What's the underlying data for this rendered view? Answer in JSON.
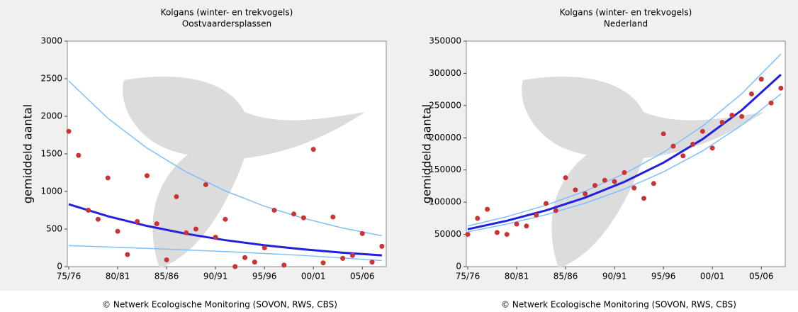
{
  "chart_data": [
    {
      "type": "scatter",
      "title": "Kolgans (winter- en trekvogels)",
      "subtitle": "Oostvaardersplassen",
      "y_label": "gemiddeld aantal",
      "source": "© Netwerk Ecologische Monitoring (SOVON, RWS, CBS)",
      "xlim": [
        1975,
        2007.3
      ],
      "ylim": [
        0,
        3000
      ],
      "yticks": [
        0,
        500,
        1000,
        1500,
        2000,
        2500,
        3000
      ],
      "xticks": [
        {
          "value": 1975,
          "label": "75/76"
        },
        {
          "value": 1980,
          "label": "80/81"
        },
        {
          "value": 1985,
          "label": "85/86"
        },
        {
          "value": 1990,
          "label": "90/91"
        },
        {
          "value": 1995,
          "label": "95/96"
        },
        {
          "value": 2000,
          "label": "00/01"
        },
        {
          "value": 2005,
          "label": "05/06"
        }
      ],
      "points": {
        "color": "#cc3333",
        "x": [
          1975,
          1976,
          1977,
          1978,
          1979,
          1980,
          1981,
          1982,
          1983,
          1984,
          1985,
          1986,
          1987,
          1988,
          1989,
          1990,
          1991,
          1992,
          1993,
          1994,
          1995,
          1996,
          1997,
          1998,
          1999,
          2000,
          2001,
          2002,
          2003,
          2004,
          2005,
          2006,
          2007
        ],
        "values": [
          1800,
          1480,
          750,
          630,
          1180,
          470,
          160,
          600,
          1210,
          570,
          90,
          930,
          450,
          500,
          1090,
          390,
          630,
          0,
          120,
          60,
          250,
          750,
          20,
          700,
          650,
          1560,
          50,
          660,
          110,
          150,
          440,
          60,
          270
        ]
      },
      "trends": [
        {
          "color": "#2020e0",
          "x": [
            1975,
            1979,
            1983,
            1987,
            1991,
            1995,
            1999,
            2003,
            2007
          ],
          "values": [
            830,
            670,
            541,
            437,
            352,
            284,
            230,
            185,
            150
          ]
        },
        {
          "color": "#7fbfff",
          "x": [
            1975,
            1979,
            1983,
            1987,
            1991,
            1995,
            1999,
            2003,
            2007
          ],
          "values": [
            2470,
            1973,
            1577,
            1260,
            1007,
            804,
            643,
            513,
            410
          ]
        },
        {
          "color": "#7fbfff",
          "x": [
            1975,
            1979,
            1983,
            1987,
            1991,
            1995,
            1999,
            2003,
            2007
          ],
          "values": [
            280,
            262,
            243,
            222,
            200,
            175,
            148,
            115,
            80
          ]
        }
      ]
    },
    {
      "type": "scatter",
      "title": "Kolgans (winter- en trekvogels)",
      "subtitle": "Nederland",
      "y_label": "gemiddeld aantal",
      "source": "© Netwerk Ecologische Monitoring (SOVON, RWS, CBS)",
      "xlim": [
        1975,
        2007.3
      ],
      "ylim": [
        0,
        350000
      ],
      "yticks": [
        0,
        50000,
        100000,
        150000,
        200000,
        250000,
        300000,
        350000
      ],
      "xticks": [
        {
          "value": 1975,
          "label": "75/76"
        },
        {
          "value": 1980,
          "label": "80/81"
        },
        {
          "value": 1985,
          "label": "85/86"
        },
        {
          "value": 1990,
          "label": "90/91"
        },
        {
          "value": 1995,
          "label": "95/96"
        },
        {
          "value": 2000,
          "label": "00/01"
        },
        {
          "value": 2005,
          "label": "05/06"
        }
      ],
      "points": {
        "color": "#cc3333",
        "x": [
          1975,
          1976,
          1977,
          1978,
          1979,
          1980,
          1981,
          1982,
          1983,
          1984,
          1985,
          1986,
          1987,
          1988,
          1989,
          1990,
          1991,
          1992,
          1993,
          1994,
          1995,
          1996,
          1997,
          1998,
          1999,
          2000,
          2001,
          2002,
          2003,
          2004,
          2005,
          2006,
          2007
        ],
        "values": [
          50000,
          75000,
          89000,
          53000,
          50000,
          66000,
          63000,
          80000,
          98000,
          87000,
          138000,
          119000,
          113000,
          126000,
          134000,
          132000,
          146000,
          122000,
          106000,
          129000,
          206000,
          187000,
          172000,
          190000,
          210000,
          184000,
          224000,
          235000,
          233000,
          268000,
          291000,
          254000,
          277000
        ]
      },
      "trends": [
        {
          "color": "#2020e0",
          "x": [
            1975,
            1979,
            1983,
            1987,
            1991,
            1995,
            1999,
            2003,
            2007
          ],
          "values": [
            58000,
            71200,
            87300,
            107100,
            131500,
            161300,
            197900,
            242800,
            298000
          ]
        },
        {
          "color": "#7fbfff",
          "x": [
            1975,
            1979,
            1983,
            1987,
            1991,
            1995,
            1999,
            2003,
            2007
          ],
          "values": [
            63000,
            77500,
            95300,
            117200,
            144200,
            177300,
            218100,
            268300,
            330000
          ]
        },
        {
          "color": "#7fbfff",
          "x": [
            1975,
            1979,
            1983,
            1987,
            1991,
            1995,
            1999,
            2003,
            2007
          ],
          "values": [
            54000,
            66000,
            80600,
            98500,
            120300,
            147000,
            179600,
            219400,
            268000
          ]
        }
      ]
    }
  ]
}
